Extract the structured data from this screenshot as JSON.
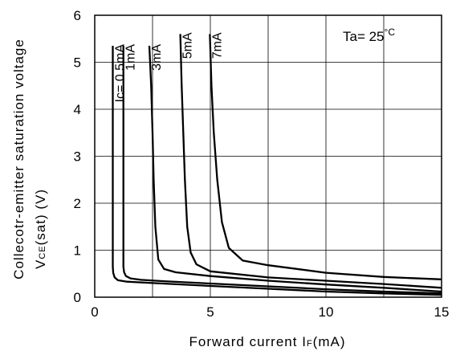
{
  "chart_data": {
    "type": "line",
    "title": "",
    "xlabel": "Forward current I",
    "xlabel_sub": "F",
    "xlabel_unit": "(mA)",
    "ylabel_line1": "Collecotr-emitter saturation voltage",
    "ylabel_line2": "V",
    "ylabel_line2_sub": "CE",
    "ylabel_line2_rest": "(sat) (V)",
    "xlim": [
      0,
      15
    ],
    "ylim": [
      0,
      6
    ],
    "x_ticks": [
      0,
      5,
      10,
      15
    ],
    "y_ticks": [
      0,
      1,
      2,
      3,
      4,
      5,
      6
    ],
    "x_grid": [
      2.5,
      5,
      7.5,
      10,
      12.5
    ],
    "y_grid": [
      1,
      2,
      3,
      4,
      5
    ],
    "grid": true,
    "annotation": "Ta= 25",
    "annotation_unit": "°C",
    "series": [
      {
        "name": "Ic= 0.5mA",
        "x": [
          0.78,
          0.78,
          0.8,
          0.86,
          1.0,
          1.4,
          2.5,
          5,
          7.5,
          10,
          12.5,
          15
        ],
        "y": [
          5.35,
          0.65,
          0.52,
          0.42,
          0.36,
          0.33,
          0.3,
          0.24,
          0.18,
          0.12,
          0.08,
          0.05
        ]
      },
      {
        "name": "1mA",
        "x": [
          1.24,
          1.24,
          1.27,
          1.35,
          1.55,
          2.0,
          3,
          5,
          7.5,
          10,
          12.5,
          15
        ],
        "y": [
          5.35,
          0.65,
          0.53,
          0.45,
          0.4,
          0.37,
          0.34,
          0.29,
          0.23,
          0.17,
          0.12,
          0.08
        ]
      },
      {
        "name": "3mA",
        "x": [
          2.36,
          2.44,
          2.5,
          2.55,
          2.62,
          2.75,
          3.0,
          3.5,
          5,
          7.5,
          10,
          12.5,
          15
        ],
        "y": [
          5.35,
          4.5,
          3.5,
          2.5,
          1.5,
          0.8,
          0.6,
          0.53,
          0.45,
          0.35,
          0.27,
          0.2,
          0.12
        ]
      },
      {
        "name": "5mA",
        "x": [
          3.7,
          3.76,
          3.83,
          3.9,
          4.0,
          4.15,
          4.4,
          5,
          7.5,
          10,
          12.5,
          15
        ],
        "y": [
          5.6,
          4.5,
          3.5,
          2.5,
          1.5,
          0.95,
          0.7,
          0.55,
          0.42,
          0.35,
          0.28,
          0.2
        ]
      },
      {
        "name": "7mA",
        "x": [
          4.98,
          5.05,
          5.15,
          5.3,
          5.5,
          5.8,
          6.4,
          7.5,
          10,
          12.5,
          15
        ],
        "y": [
          5.6,
          4.5,
          3.5,
          2.5,
          1.6,
          1.05,
          0.78,
          0.68,
          0.52,
          0.43,
          0.38
        ]
      }
    ]
  }
}
